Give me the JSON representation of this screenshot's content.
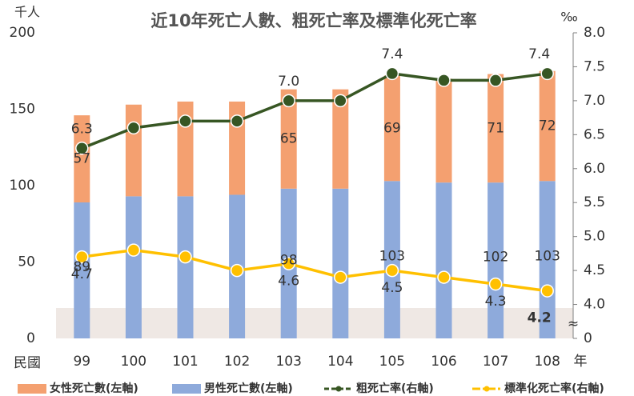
{
  "chart_data": {
    "type": "combo",
    "title": "近10年死亡人數、粗死亡率及標準化死亡率",
    "y_label": "千人",
    "y2_label": "‰",
    "x_label": "民國",
    "x_unit": "年",
    "categories": [
      "99",
      "100",
      "101",
      "102",
      "103",
      "104",
      "105",
      "106",
      "107",
      "108"
    ],
    "ylim": [
      0,
      200
    ],
    "yticks": [
      0,
      50,
      100,
      150,
      200
    ],
    "y2lim": [
      0,
      8
    ],
    "y2_axis_break": true,
    "y2ticks": [
      0,
      {
        "value": 4,
        "label": "4.0"
      },
      4.5,
      {
        "value": 5,
        "label": "5.0"
      },
      5.5,
      {
        "value": 6,
        "label": "6.0"
      },
      6.5,
      {
        "value": 7,
        "label": "7.0"
      },
      7.5,
      {
        "value": 8,
        "label": "8.0"
      }
    ],
    "series": [
      {
        "name": "男性死亡數(左軸)",
        "type": "bar",
        "color": "#8eaadb",
        "label_color": "#0000ff",
        "values": [
          89,
          93,
          93,
          94,
          98,
          98,
          103,
          102,
          102,
          103
        ],
        "value_labels": [
          "89",
          null,
          null,
          null,
          "98",
          null,
          "103",
          null,
          "102",
          "103"
        ]
      },
      {
        "name": "女性死亡數(左軸)",
        "type": "bar",
        "color": "#f4a070",
        "label_color": "#c00000",
        "values": [
          57,
          60,
          62,
          61,
          65,
          65,
          69,
          68,
          71,
          72
        ],
        "value_labels": [
          "57",
          null,
          null,
          null,
          "65",
          null,
          "69",
          null,
          "71",
          "72"
        ]
      },
      {
        "name": "粗死亡率(右軸)",
        "type": "line",
        "axis": "y2",
        "color": "#375623",
        "label_color": "#375623",
        "values": [
          6.3,
          6.6,
          6.7,
          6.7,
          7.0,
          7.0,
          7.4,
          7.3,
          7.3,
          7.4
        ],
        "value_labels": [
          "6.3",
          null,
          null,
          null,
          "7.0",
          null,
          "7.4",
          null,
          null,
          "7.4"
        ]
      },
      {
        "name": "標準化死亡率(右軸)",
        "type": "line",
        "axis": "y2",
        "color": "#ffc000",
        "label_color": "#843c0c",
        "values": [
          4.7,
          4.8,
          4.7,
          4.5,
          4.6,
          4.4,
          4.5,
          4.4,
          4.3,
          4.2
        ],
        "value_labels": [
          "4.7",
          null,
          null,
          null,
          "4.6",
          null,
          "4.5",
          null,
          "4.3",
          "4.2"
        ]
      }
    ]
  }
}
